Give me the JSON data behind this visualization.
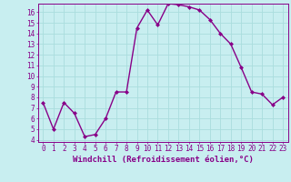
{
  "x": [
    0,
    1,
    2,
    3,
    4,
    5,
    6,
    7,
    8,
    9,
    10,
    11,
    12,
    13,
    14,
    15,
    16,
    17,
    18,
    19,
    20,
    21,
    22,
    23
  ],
  "y": [
    7.5,
    5.0,
    7.5,
    6.5,
    4.3,
    4.5,
    6.0,
    8.5,
    8.5,
    14.5,
    16.2,
    14.8,
    16.8,
    16.7,
    16.5,
    16.2,
    15.3,
    14.0,
    13.0,
    10.8,
    8.5,
    8.3,
    7.3,
    8.0
  ],
  "line_color": "#880088",
  "marker": "D",
  "marker_size": 2,
  "bg_color": "#c8eef0",
  "grid_color": "#aadddd",
  "xlabel": "Windchill (Refroidissement éolien,°C)",
  "xlim_min": -0.5,
  "xlim_max": 23.5,
  "ylim_min": 3.8,
  "ylim_max": 16.8,
  "yticks": [
    4,
    5,
    6,
    7,
    8,
    9,
    10,
    11,
    12,
    13,
    14,
    15,
    16
  ],
  "xticks": [
    0,
    1,
    2,
    3,
    4,
    5,
    6,
    7,
    8,
    9,
    10,
    11,
    12,
    13,
    14,
    15,
    16,
    17,
    18,
    19,
    20,
    21,
    22,
    23
  ],
  "tick_color": "#880088",
  "label_color": "#880088",
  "spine_color": "#880088",
  "tick_fontsize": 5.5,
  "xlabel_fontsize": 6.5,
  "linewidth": 1.0
}
